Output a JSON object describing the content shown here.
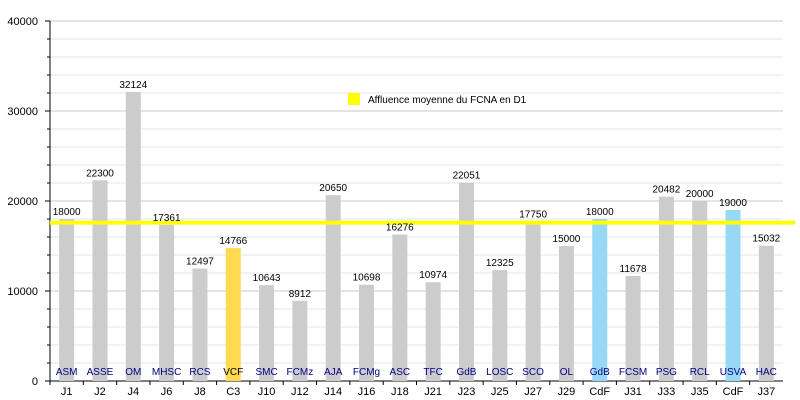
{
  "chart_data": {
    "type": "bar",
    "title": "",
    "xlabel": "",
    "ylabel": "",
    "ylim": [
      0,
      40000
    ],
    "yticks": [
      "0",
      "10000",
      "20000",
      "30000",
      "40000"
    ],
    "grid": true,
    "legend_placement": "top-center",
    "categories": [
      "J1",
      "J2",
      "J4",
      "J6",
      "J8",
      "C3",
      "J10",
      "J12",
      "J14",
      "J16",
      "J18",
      "J21",
      "J23",
      "J25",
      "J27",
      "J29",
      "CdF",
      "J31",
      "J33",
      "J35",
      "CdF",
      "J37"
    ],
    "teams": [
      "ASM",
      "ASSE",
      "OM",
      "MHSC",
      "RCS",
      "VCF",
      "SMC",
      "FCMz",
      "AJA",
      "FCMg",
      "ASC",
      "TFC",
      "GdB",
      "LOSC",
      "SCO",
      "OL",
      "GdB",
      "FCSM",
      "PSG",
      "RCL",
      "USVA",
      "HAC"
    ],
    "values": [
      18000,
      22300,
      32124,
      17361,
      12497,
      14766,
      10643,
      8912,
      20650,
      10698,
      16276,
      10974,
      22051,
      12325,
      17750,
      15000,
      18000,
      11678,
      20482,
      20000,
      19000,
      15032
    ],
    "value_labels": [
      "18000",
      "22300",
      "32124",
      "17361",
      "12497",
      "14766",
      "10643",
      "8912",
      "20650",
      "10698",
      "16276",
      "10974",
      "22051",
      "12325",
      "17750",
      "15000",
      "18000",
      "11678",
      "20482",
      "20000",
      "19000",
      "15032"
    ],
    "bar_colors": [
      "#cccccc",
      "#cccccc",
      "#cccccc",
      "#cccccc",
      "#cccccc",
      "#ffd94f",
      "#cccccc",
      "#cccccc",
      "#cccccc",
      "#cccccc",
      "#cccccc",
      "#cccccc",
      "#cccccc",
      "#cccccc",
      "#cccccc",
      "#cccccc",
      "#97d8f7",
      "#cccccc",
      "#cccccc",
      "#cccccc",
      "#97d8f7",
      "#cccccc"
    ],
    "team_label_colors": [
      "#000080",
      "#000080",
      "#000080",
      "#000080",
      "#000080",
      "#000000",
      "#000080",
      "#000080",
      "#000080",
      "#000080",
      "#000080",
      "#000080",
      "#000080",
      "#000080",
      "#000080",
      "#000080",
      "#000080",
      "#000080",
      "#000080",
      "#000080",
      "#000080",
      "#000080"
    ],
    "average_line": {
      "value": 17600,
      "color": "#ffff00",
      "label": "Affluence moyenne du FCNA en D1"
    }
  }
}
